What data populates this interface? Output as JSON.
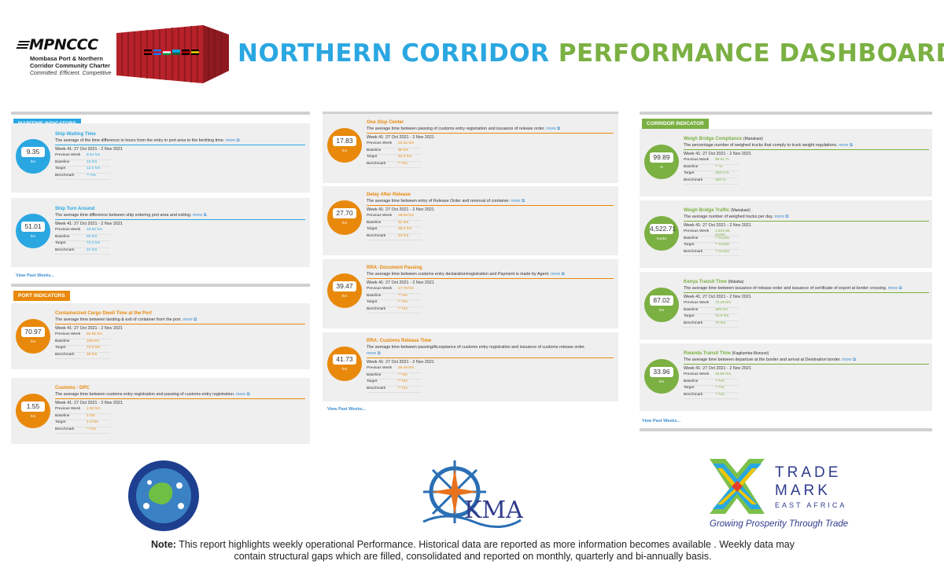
{
  "header": {
    "logo_mark": "MPNCCC",
    "logo_sub_1": "Mombasa Port & Northern",
    "logo_sub_2": "Corridor Community Charter",
    "logo_tagline": "Committed. Efficient. Competitive",
    "title_part1": "NORTHERN CORRIDOR",
    "title_part2": "PERFORMANCE DASHBOARD"
  },
  "colors": {
    "maritime": "#2aa7e1",
    "port": "#e8890c",
    "corridor": "#7bb042",
    "title_blue": "#2aa7e1",
    "title_green": "#7bb042"
  },
  "labels": {
    "previous_week": "Previous Week",
    "baseline": "Baseline",
    "target": "Target",
    "benchmark": "Benchmark",
    "more": "more ⧉",
    "view_past": "View Past Weeks..."
  },
  "week": "Week 41: 27 Oct 2021 - 2 Nov 2021",
  "maritime": {
    "tag": "MARITIME INDICATORS",
    "items": [
      {
        "title": "Ship Waiting Time",
        "desc": "The average of the time difference in hours from the entry in port area to the berthing time.",
        "value": "9.35",
        "unit": "hrs",
        "previous": "8.84 hrs",
        "baseline": "13 hrs",
        "target": "12.0 hrs",
        "benchmark": "** hrs"
      },
      {
        "title": "Ship Turn Around",
        "desc": "The average time difference between ship entering port area and exiting.",
        "value": "51.01",
        "unit": "hrs",
        "previous": "49.50 hrs",
        "baseline": "92 hrs",
        "target": "72.0 hrs",
        "benchmark": "24 hrs"
      }
    ]
  },
  "port": {
    "tag": "PORT INDICATORS",
    "items": [
      {
        "title": "Containerized Cargo Dwell Time at the Port",
        "desc": "The average time between landing & exit of container from the port.",
        "value": "70.97",
        "unit": "hrs",
        "previous": "82.00 hrs",
        "baseline": "105 hrs",
        "target": "72.0 hrs",
        "benchmark": "48 hrs"
      },
      {
        "title": "Customs - DPC",
        "desc": "The average time between customs entry registration and passing of customs entry registration.",
        "value": "1.55",
        "unit": "hrs",
        "previous": "1.92 hrs",
        "baseline": "2 hrs",
        "target": "1.0 hrs",
        "benchmark": "** hrs"
      }
    ]
  },
  "middle": {
    "items": [
      {
        "title": "One Stop Center",
        "desc": "The average time between passing of customs entry registration and issuance of release order.",
        "desc2": "",
        "value": "17.83",
        "unit": "hrs",
        "previous": "22.32 hrs",
        "baseline": "80 hrs",
        "target": "24.0 hrs",
        "benchmark": "** hrs"
      },
      {
        "title": "Delay After Release",
        "desc": "The average time between entry of Release Order and removal of container.",
        "desc2": "",
        "value": "27.70",
        "unit": "hrs",
        "previous": "28.09 hrs",
        "baseline": "42 hrs",
        "target": "36.0 hrs",
        "benchmark": "24 hrs"
      },
      {
        "title": "RRA: Document Passing",
        "desc": "The average time between customs entry declaration/registration and Payment is made by Agent.",
        "desc2": "",
        "value": "39.47",
        "unit": "hrs",
        "previous": "17.79 hrs",
        "baseline": "** hrs",
        "target": "** hrs",
        "benchmark": "** hrs"
      },
      {
        "title": "RRA: Customs Release Time",
        "desc": "The average time between passing/Acceptance of customs entry registration and issuance of customs release order.",
        "desc2": "more ⧉",
        "value": "41.73",
        "unit": "hrs",
        "previous": "25.45 hrs",
        "baseline": "** hrs",
        "target": "** hrs",
        "benchmark": "** hrs"
      }
    ]
  },
  "corridor": {
    "tag": "CORRIDOR INDICATOR",
    "items": [
      {
        "title": "Weigh Bridge Compliance",
        "loc": "(Mariakani)",
        "desc": "The percentage number of weighed trucks that comply to truck weight regulations.",
        "value": "99.89",
        "unit": "%",
        "previous": "89.81 %",
        "baseline": "** %",
        "target": "100.0 %",
        "benchmark": "100 %"
      },
      {
        "title": "Weigh Bridge Traffic",
        "loc": "(Mariakani)",
        "desc": "The average number of weighed trucks per day.",
        "value": "4,522.71",
        "unit": "trucks",
        "previous": "1,944.86 trucks",
        "baseline": "** trucks",
        "target": "** trucks",
        "benchmark": "** trucks"
      },
      {
        "title": "Kenya Transit Time",
        "loc": "(Malaba)",
        "desc": "The average time between issuance of release order and issuance of certificate of export at border crossing.",
        "value": "87.02",
        "unit": "hrs",
        "previous": "73.26 hrs",
        "baseline": "189 hrs",
        "target": "72.0 hrs",
        "benchmark": "72 hrs"
      },
      {
        "title": "Rwanda Transit Time",
        "loc": "(Kagitumba-Murunzi)",
        "desc": "The average time between departure at the border and arrival at Destination border.",
        "value": "33.96",
        "unit": "hrs",
        "previous": "35.96 hrs",
        "baseline": "** hrs",
        "target": "** hrs",
        "benchmark": "** hrs"
      }
    ]
  },
  "footer": {
    "kma": "KMA",
    "tm_line1": "TRADE",
    "tm_line2": "MARK",
    "tm_line3": "EAST AFRICA",
    "tm_tagline": "Growing Prosperity Through Trade",
    "note_label": "Note:",
    "note_text": " This report highlights weekly operational Performance. Historical data are reported as more information becomes available . Weekly data may contain structural gaps which are filled, consolidated and reported on monthly, quarterly and bi-annually basis."
  }
}
